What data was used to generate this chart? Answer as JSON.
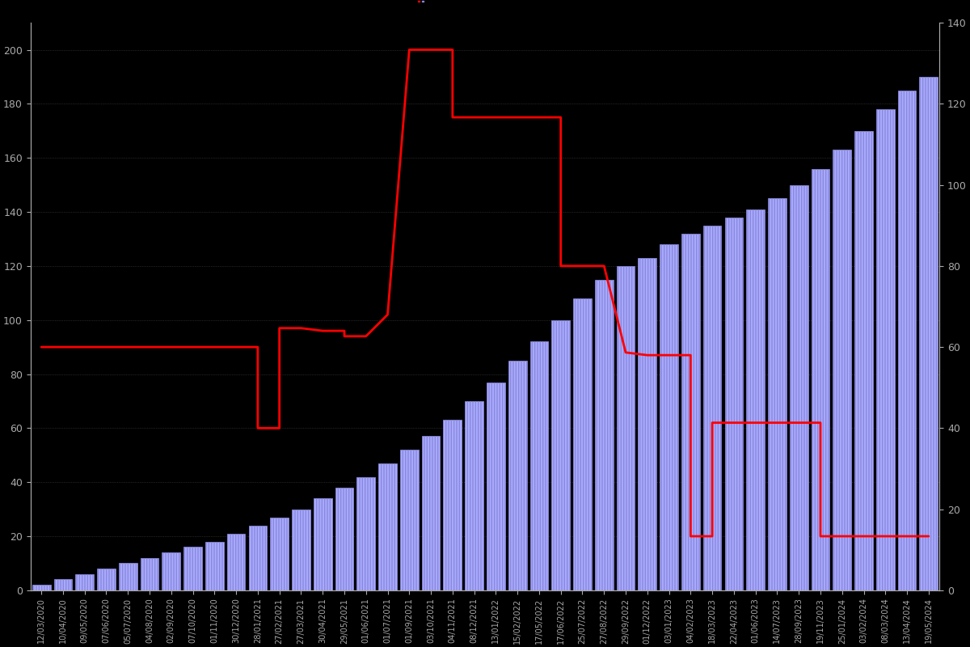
{
  "background_color": "#000000",
  "bar_color": "#aaaaff",
  "bar_edge_color": "#8888dd",
  "line_color": "#ff0000",
  "left_ylim": [
    0,
    210
  ],
  "right_ylim": [
    0,
    140
  ],
  "left_yticks": [
    0,
    20,
    40,
    60,
    80,
    100,
    120,
    140,
    160,
    180,
    200
  ],
  "right_yticks": [
    0,
    20,
    40,
    60,
    80,
    100,
    120,
    140
  ],
  "tick_color": "#aaaaaa",
  "dates": [
    "12/03/2020",
    "10/04/2020",
    "09/05/2020",
    "07/06/2020",
    "05/07/2020",
    "04/08/2020",
    "02/09/2020",
    "07/10/2020",
    "01/11/2020",
    "30/12/2020",
    "28/01/2021",
    "27/02/2021",
    "27/03/2021",
    "30/04/2021",
    "29/05/2021",
    "01/06/2021",
    "01/07/2021",
    "01/09/2021",
    "03/10/2021",
    "04/11/2021",
    "08/12/2021",
    "13/01/2022",
    "15/02/2022",
    "17/05/2022",
    "17/06/2022",
    "25/07/2022",
    "27/08/2022",
    "29/09/2022",
    "01/12/2022",
    "03/01/2023",
    "04/02/2023",
    "18/03/2023",
    "22/04/2023",
    "01/06/2023",
    "14/07/2023",
    "28/09/2023",
    "19/11/2023",
    "25/01/2024",
    "03/02/2024",
    "08/03/2024",
    "13/04/2024",
    "19/05/2024"
  ],
  "bar_values": [
    2,
    4,
    6,
    8,
    10,
    12,
    14,
    16,
    18,
    21,
    24,
    27,
    30,
    34,
    38,
    42,
    47,
    52,
    57,
    63,
    70,
    77,
    85,
    92,
    100,
    108,
    115,
    120,
    123,
    128,
    132,
    135,
    138,
    141,
    145,
    150,
    156,
    163,
    170,
    178,
    185,
    190
  ],
  "price_x": [
    0,
    1,
    2,
    3,
    4,
    5,
    6,
    7,
    8,
    9,
    10,
    10,
    11,
    11,
    12,
    13,
    14,
    14,
    15,
    16,
    17,
    18,
    19,
    19,
    20,
    21,
    22,
    23,
    24,
    24,
    25,
    25,
    26,
    27,
    28,
    29,
    30,
    30,
    31,
    31,
    32,
    33,
    34,
    35,
    36,
    36,
    37,
    38,
    39,
    40,
    41
  ],
  "price_y": [
    90,
    90,
    90,
    90,
    90,
    90,
    90,
    90,
    90,
    90,
    90,
    60,
    60,
    97,
    97,
    96,
    96,
    94,
    94,
    102,
    200,
    200,
    200,
    175,
    175,
    175,
    175,
    175,
    175,
    120,
    120,
    120,
    120,
    88,
    87,
    87,
    87,
    20,
    20,
    62,
    62,
    62,
    62,
    62,
    62,
    20,
    20,
    20,
    20,
    20,
    20
  ],
  "grid_color": "#333333",
  "dot_color": "#ff0000"
}
